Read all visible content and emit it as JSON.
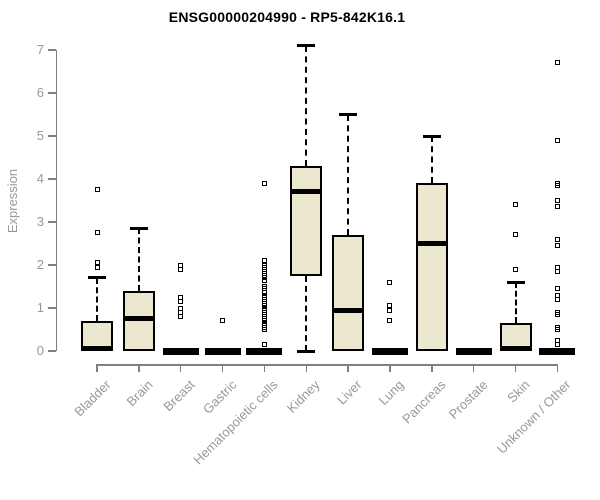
{
  "chart_data": {
    "type": "box",
    "title": "ENSG00000204990 - RP5-842K16.1",
    "ylabel": "Expression",
    "xlabel": "",
    "ylim": [
      0,
      7.2
    ],
    "yticks": [
      "0",
      "1",
      "2",
      "3",
      "4",
      "5",
      "6",
      "7"
    ],
    "grid": false,
    "legend": "none",
    "categories": [
      "Bladder",
      "Brain",
      "Breast",
      "Gastric",
      "Hematopoietic cells",
      "Kidney",
      "Liver",
      "Lung",
      "Pancreas",
      "Prostate",
      "Skin",
      "Unknown / Other"
    ],
    "boxes": [
      {
        "category": "Bladder",
        "flat": false,
        "q1": 0,
        "median": 0.05,
        "q3": 0.7,
        "whisker_low": 0,
        "whisker_high": 1.7,
        "outliers": [
          1.95,
          2.05,
          2.75,
          3.75
        ]
      },
      {
        "category": "Brain",
        "flat": false,
        "q1": 0,
        "median": 0.75,
        "q3": 1.4,
        "whisker_low": 0,
        "whisker_high": 2.85,
        "outliers": []
      },
      {
        "category": "Breast",
        "flat": true,
        "q1": 0,
        "median": 0,
        "q3": 0,
        "whisker_low": 0,
        "whisker_high": 0,
        "outliers": [
          0.8,
          0.9,
          1.0,
          1.15,
          1.25,
          1.9,
          2.0
        ]
      },
      {
        "category": "Gastric",
        "flat": true,
        "q1": 0,
        "median": 0,
        "q3": 0,
        "whisker_low": 0,
        "whisker_high": 0,
        "outliers": [
          0.7
        ]
      },
      {
        "category": "Hematopoietic cells",
        "flat": true,
        "q1": 0,
        "median": 0,
        "q3": 0,
        "whisker_low": 0,
        "whisker_high": 0,
        "outliers": [
          0.15,
          0.5,
          0.55,
          0.6,
          0.65,
          0.7,
          0.75,
          0.8,
          0.85,
          0.9,
          0.95,
          1.0,
          1.05,
          1.1,
          1.15,
          1.2,
          1.25,
          1.3,
          1.35,
          1.45,
          1.5,
          1.65,
          1.7,
          1.75,
          1.8,
          1.85,
          1.9,
          1.95,
          2.0,
          2.1,
          3.9
        ]
      },
      {
        "category": "Kidney",
        "flat": false,
        "q1": 1.75,
        "median": 3.7,
        "q3": 4.3,
        "whisker_low": 0,
        "whisker_high": 7.1,
        "outliers": []
      },
      {
        "category": "Liver",
        "flat": false,
        "q1": 0,
        "median": 0.95,
        "q3": 2.7,
        "whisker_low": 0,
        "whisker_high": 5.5,
        "outliers": []
      },
      {
        "category": "Lung",
        "flat": true,
        "q1": 0,
        "median": 0,
        "q3": 0,
        "whisker_low": 0,
        "whisker_high": 0,
        "outliers": [
          0.7,
          0.95,
          1.05,
          1.6
        ]
      },
      {
        "category": "Pancreas",
        "flat": false,
        "q1": 0,
        "median": 2.5,
        "q3": 3.9,
        "whisker_low": 0,
        "whisker_high": 5.0,
        "outliers": []
      },
      {
        "category": "Prostate",
        "flat": true,
        "q1": 0,
        "median": 0,
        "q3": 0,
        "whisker_low": 0,
        "whisker_high": 0,
        "outliers": []
      },
      {
        "category": "Skin",
        "flat": false,
        "q1": 0,
        "median": 0.05,
        "q3": 0.65,
        "whisker_low": 0,
        "whisker_high": 1.6,
        "outliers": [
          1.9,
          2.7,
          3.4
        ]
      },
      {
        "category": "Unknown / Other",
        "flat": true,
        "q1": 0,
        "median": 0,
        "q3": 0,
        "whisker_low": 0,
        "whisker_high": 0,
        "outliers": [
          0.15,
          0.25,
          0.5,
          0.55,
          0.85,
          0.9,
          1.2,
          1.3,
          1.45,
          1.85,
          1.95,
          2.45,
          2.6,
          3.35,
          3.5,
          3.85,
          3.9,
          4.9,
          6.7
        ]
      }
    ],
    "colors": {
      "box_fill": "#ECE7CF",
      "box_border": "#000000",
      "median": "#000000",
      "whisker": "#000000",
      "outlier_border": "#000000",
      "axis": "#808080",
      "tick_label": "#999999",
      "title": "#000000"
    }
  }
}
